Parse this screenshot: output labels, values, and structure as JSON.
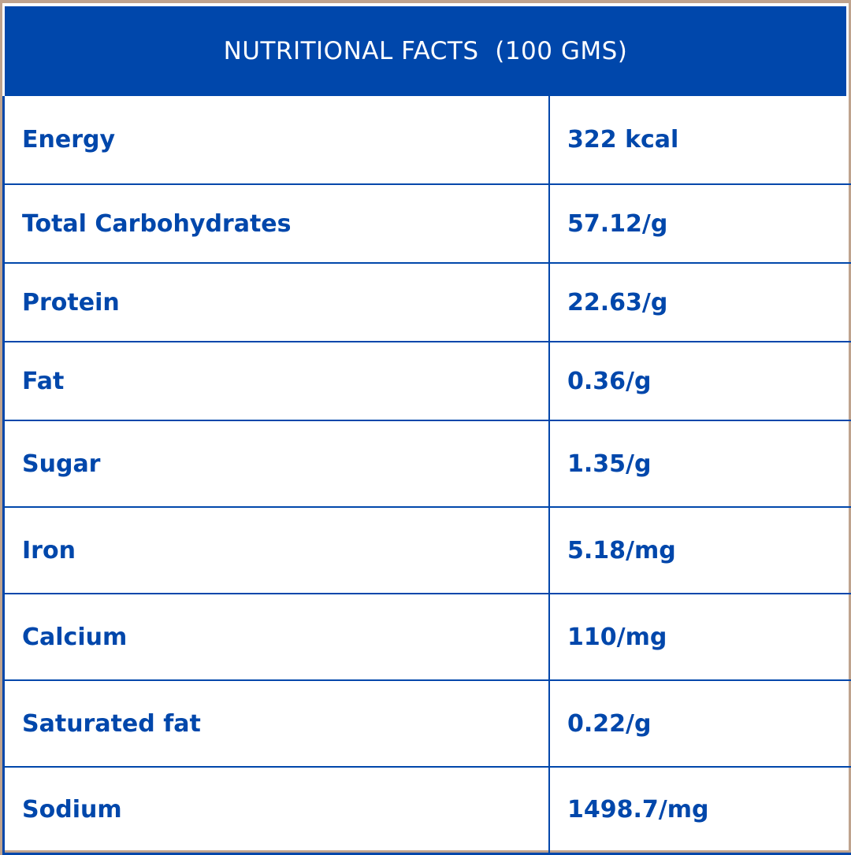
{
  "title": "NUTRITIONAL FACTS  (100 GMS)",
  "colors": {
    "brand_blue": "#0047ab",
    "frame": "#bfa38e",
    "background": "#ffffff"
  },
  "rows": [
    {
      "nutrient": "Energy",
      "value": "322 kcal"
    },
    {
      "nutrient": "Total Carbohydrates",
      "value": "57.12/g"
    },
    {
      "nutrient": "Protein",
      "value": "22.63/g"
    },
    {
      "nutrient": "Fat",
      "value": "0.36/g"
    },
    {
      "nutrient": "Sugar",
      "value": "1.35/g"
    },
    {
      "nutrient": "Iron",
      "value": "5.18/mg"
    },
    {
      "nutrient": "Calcium",
      "value": "110/mg"
    },
    {
      "nutrient": "Saturated fat",
      "value": "0.22/g"
    },
    {
      "nutrient": "Sodium",
      "value": "1498.7/mg"
    }
  ]
}
